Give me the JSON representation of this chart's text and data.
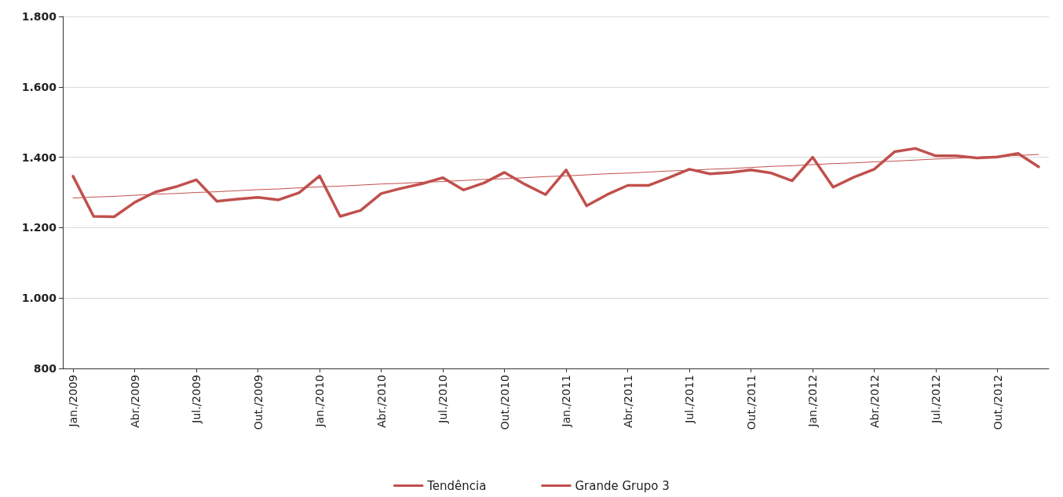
{
  "chart_data": {
    "type": "line",
    "categories": [
      "Jan./2009",
      null,
      null,
      "Abr./2009",
      null,
      null,
      "Jul./2009",
      null,
      null,
      "Out./2009",
      null,
      null,
      "Jan./2010",
      null,
      null,
      "Abr./2010",
      null,
      null,
      "Jul./2010",
      null,
      null,
      "Out./2010",
      null,
      null,
      "Jan./2011",
      null,
      null,
      "Abr./2011",
      null,
      null,
      "Jul./2011",
      null,
      null,
      "Out./2011",
      null,
      null,
      "Jan./2012",
      null,
      null,
      "Abr./2012",
      null,
      null,
      "Jul./2012",
      null,
      null,
      "Out./2012",
      null,
      null
    ],
    "series": [
      {
        "name": "Tendência",
        "color": "#c0504d",
        "values": [
          1284,
          1287,
          1289,
          1292,
          1295,
          1297,
          1300,
          1302,
          1305,
          1308,
          1310,
          1313,
          1316,
          1318,
          1321,
          1324,
          1326,
          1329,
          1331,
          1334,
          1337,
          1339,
          1342,
          1345,
          1347,
          1350,
          1353,
          1355,
          1358,
          1361,
          1363,
          1366,
          1368,
          1371,
          1374,
          1376,
          1379,
          1382,
          1384,
          1387,
          1389,
          1392,
          1395,
          1397,
          1400,
          1403,
          1405,
          1408
        ]
      },
      {
        "name": "Grande Grupo 3",
        "color": "#c0504d",
        "values": [
          1346,
          1232,
          1231,
          1272,
          1301,
          1316,
          1336,
          1275,
          1281,
          1286,
          1279,
          1299,
          1347,
          1232,
          1249,
          1297,
          1312,
          1325,
          1342,
          1307,
          1327,
          1357,
          1323,
          1294,
          1364,
          1262,
          1294,
          1320,
          1320,
          1342,
          1366,
          1353,
          1357,
          1364,
          1355,
          1333,
          1400,
          1315,
          1343,
          1366,
          1416,
          1425,
          1404,
          1404,
          1398,
          1401,
          1411,
          1373
        ]
      }
    ],
    "ylim": [
      800,
      1800
    ],
    "yticks": [
      {
        "value": 800,
        "label": "800"
      },
      {
        "value": 1000,
        "label": "1.000"
      },
      {
        "value": 1200,
        "label": "1.200"
      },
      {
        "value": 1400,
        "label": "1.400"
      },
      {
        "value": 1600,
        "label": "1.600"
      },
      {
        "value": 1800,
        "label": "1.800"
      }
    ],
    "grid": "y",
    "legend": "bottom",
    "marker": "none",
    "line_style": "solid"
  }
}
